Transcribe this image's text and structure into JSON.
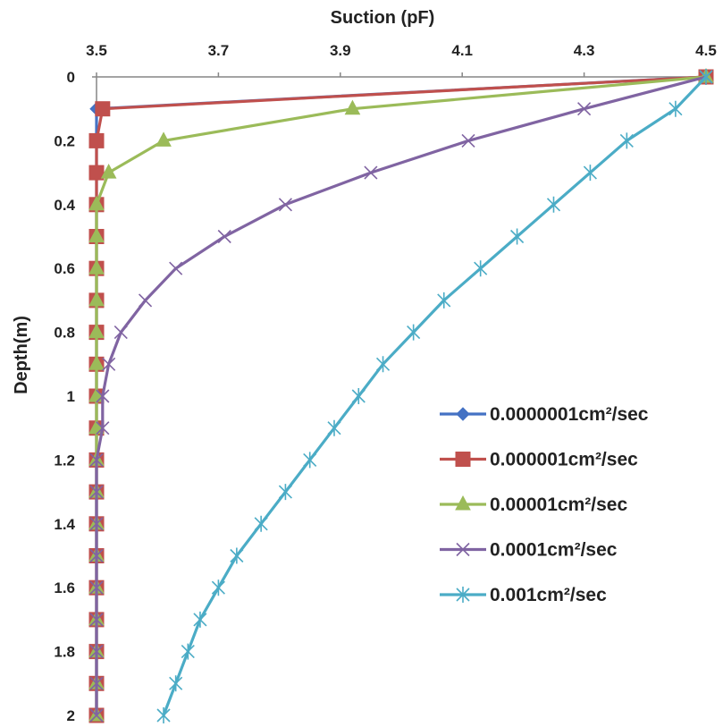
{
  "chart_data": {
    "type": "line",
    "title": "",
    "xlabel": "Suction (pF)",
    "ylabel": "Depth(m)",
    "xlim": [
      3.5,
      4.5
    ],
    "ylim": [
      0,
      2
    ],
    "x_axis_position": "top",
    "y_axis_inverted": true,
    "xticks": [
      "3.5",
      "3.7",
      "3.9",
      "4.1",
      "4.3",
      "4.5"
    ],
    "yticks": [
      "0",
      "0.2",
      "0.4",
      "0.6",
      "0.8",
      "1",
      "1.2",
      "1.4",
      "1.6",
      "1.8",
      "2"
    ],
    "grid": false,
    "legend_position": "right",
    "depth": [
      0,
      0.1,
      0.2,
      0.3,
      0.4,
      0.5,
      0.6,
      0.7,
      0.8,
      0.9,
      1.0,
      1.1,
      1.2,
      1.3,
      1.4,
      1.5,
      1.6,
      1.7,
      1.8,
      1.9,
      2.0
    ],
    "series": [
      {
        "name": "0.0000001cm²/sec",
        "color": "#4472C4",
        "marker": "diamond",
        "suction": [
          4.5,
          3.5,
          3.5,
          3.5,
          3.5,
          3.5,
          3.5,
          3.5,
          3.5,
          3.5,
          3.5,
          3.5,
          3.5,
          3.5,
          3.5,
          3.5,
          3.5,
          3.5,
          3.5,
          3.5,
          3.5
        ]
      },
      {
        "name": "0.000001cm²/sec",
        "color": "#C0504D",
        "marker": "square",
        "suction": [
          4.5,
          3.51,
          3.5,
          3.5,
          3.5,
          3.5,
          3.5,
          3.5,
          3.5,
          3.5,
          3.5,
          3.5,
          3.5,
          3.5,
          3.5,
          3.5,
          3.5,
          3.5,
          3.5,
          3.5,
          3.5
        ]
      },
      {
        "name": "0.00001cm²/sec",
        "color": "#9BBB59",
        "marker": "triangle",
        "suction": [
          4.5,
          3.92,
          3.61,
          3.52,
          3.5,
          3.5,
          3.5,
          3.5,
          3.5,
          3.5,
          3.5,
          3.5,
          3.5,
          3.5,
          3.5,
          3.5,
          3.5,
          3.5,
          3.5,
          3.5,
          3.5
        ]
      },
      {
        "name": "0.0001cm²/sec",
        "color": "#8064A2",
        "marker": "x",
        "suction": [
          4.5,
          4.3,
          4.11,
          3.95,
          3.81,
          3.71,
          3.63,
          3.58,
          3.54,
          3.52,
          3.51,
          3.51,
          3.5,
          3.5,
          3.5,
          3.5,
          3.5,
          3.5,
          3.5,
          3.5,
          3.5
        ]
      },
      {
        "name": "0.001cm²/sec",
        "color": "#4BACC6",
        "marker": "star",
        "suction": [
          4.5,
          4.45,
          4.37,
          4.31,
          4.25,
          4.19,
          4.13,
          4.07,
          4.02,
          3.97,
          3.93,
          3.89,
          3.85,
          3.81,
          3.77,
          3.73,
          3.7,
          3.67,
          3.65,
          3.63,
          3.61
        ]
      }
    ]
  }
}
